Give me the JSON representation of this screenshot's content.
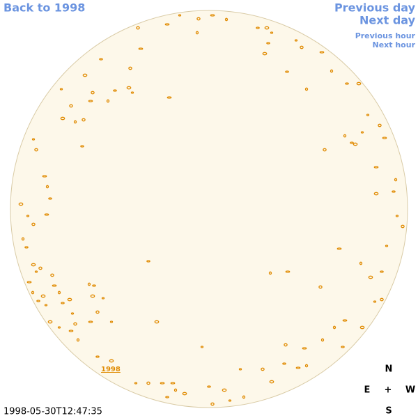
{
  "navigation": {
    "back": "Back to 1998",
    "previous_day": "Previous day",
    "next_day": "Next day",
    "previous_hour": "Previous hour",
    "next_hour": "Next hour"
  },
  "disk": {
    "year_link": "1998"
  },
  "timestamp": "1998-05-30T12:47:35",
  "compass": {
    "north": "N",
    "east": "E",
    "center": "+",
    "west": "W",
    "south": "S"
  }
}
